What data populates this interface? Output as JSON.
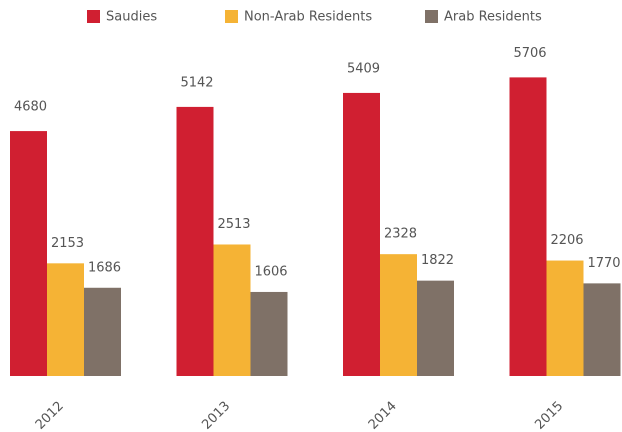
{
  "chart_data": {
    "type": "bar",
    "categories": [
      "2012",
      "2013",
      "2014",
      "2015"
    ],
    "series": [
      {
        "name": "Saudies",
        "color": "#d01f31",
        "values": [
          4680,
          5142,
          5409,
          5706
        ]
      },
      {
        "name": "Non-Arab Residents",
        "color": "#f5b335",
        "values": [
          2153,
          2513,
          2328,
          2206
        ]
      },
      {
        "name": "Arab Residents",
        "color": "#7f7167",
        "values": [
          1686,
          1606,
          1822,
          1770
        ]
      }
    ],
    "ylim": [
      0,
      6000
    ],
    "legend": "top"
  }
}
